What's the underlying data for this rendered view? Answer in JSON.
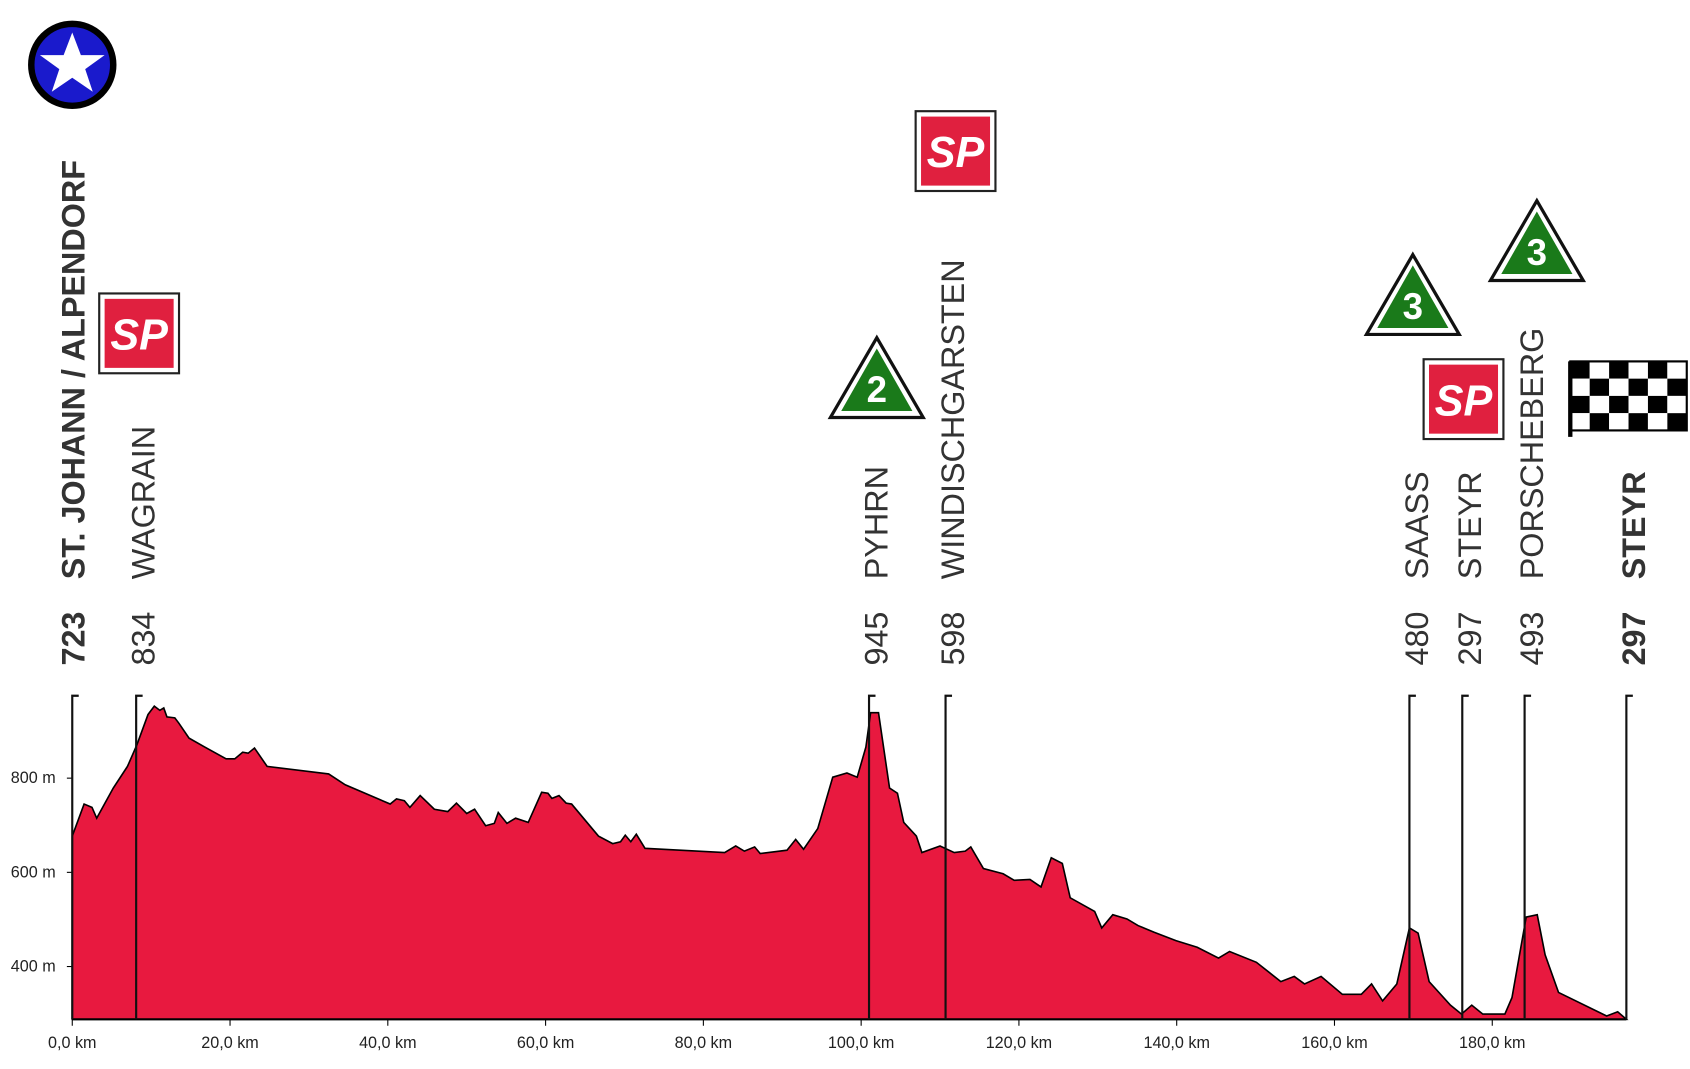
{
  "chart_data": {
    "type": "area",
    "x_unit_ticks": true,
    "x": [
      0,
      1.5,
      2.5,
      3.1,
      5.2,
      7.0,
      8.2,
      9.6,
      10.4,
      11.1,
      11.6,
      12.0,
      13.0,
      13.5,
      14.8,
      16.8,
      19.5,
      20.6,
      21.6,
      22.3,
      23.1,
      24.7,
      32.5,
      34.6,
      40.3,
      41.1,
      42.1,
      42.8,
      44.1,
      45.9,
      47.6,
      48.7,
      50.0,
      51.0,
      52.4,
      53.5,
      54.0,
      55.1,
      56.2,
      57.8,
      59.5,
      60.3,
      60.8,
      61.7,
      62.6,
      63.3,
      66.7,
      68.5,
      69.5,
      70.1,
      70.8,
      71.5,
      72.6,
      82.7,
      84.1,
      85.2,
      86.5,
      87.2,
      90.6,
      91.7,
      92.7,
      94.5,
      96.4,
      98.2,
      99.5,
      100.6,
      101.2,
      102.2,
      103.6,
      104.6,
      105.4,
      107.0,
      107.7,
      110.0,
      111.8,
      113.2,
      113.9,
      115.5,
      118.0,
      119.4,
      121.4,
      122.8,
      124.1,
      125.5,
      126.5,
      129.6,
      130.5,
      131.9,
      133.7,
      135.1,
      137.1,
      139.9,
      142.6,
      145.3,
      146.7,
      150.1,
      153.2,
      154.9,
      156.2,
      158.3,
      161.0,
      163.4,
      164.7,
      166.1,
      167.9,
      169.5,
      170.6,
      172.0,
      174.7,
      176.1,
      177.4,
      178.8,
      181.6,
      182.5,
      184.3,
      185.7,
      186.7,
      188.4,
      194.5,
      195.9,
      197.0
    ],
    "series": [
      {
        "color": "#e8193f",
        "values": [
          677,
          745,
          738,
          715,
          779,
          825,
          871,
          935,
          953,
          944,
          949,
          930,
          928,
          917,
          885,
          866,
          841,
          841,
          855,
          853,
          864,
          825,
          809,
          786,
          745,
          756,
          752,
          738,
          763,
          734,
          729,
          747,
          725,
          734,
          699,
          704,
          727,
          704,
          715,
          706,
          770,
          768,
          757,
          763,
          747,
          745,
          677,
          661,
          665,
          679,
          665,
          681,
          651,
          642,
          656,
          645,
          654,
          640,
          647,
          670,
          649,
          693,
          802,
          811,
          802,
          866,
          939,
          939,
          779,
          768,
          706,
          677,
          642,
          656,
          642,
          645,
          654,
          608,
          597,
          583,
          585,
          569,
          631,
          619,
          546,
          517,
          482,
          510,
          501,
          487,
          473,
          455,
          441,
          418,
          432,
          409,
          368,
          379,
          363,
          379,
          341,
          341,
          363,
          327,
          363,
          482,
          471,
          368,
          318,
          299,
          318,
          299,
          299,
          334,
          505,
          510,
          425,
          345,
          295,
          304,
          288
        ]
      }
    ],
    "xlim": [
      0,
      197
    ],
    "ylim": [
      288,
      975
    ],
    "xticks": [
      {
        "value": 0,
        "label": "0,0 km"
      },
      {
        "value": 20,
        "label": "20,0 km"
      },
      {
        "value": 40,
        "label": "40,0 km"
      },
      {
        "value": 60,
        "label": "60,0 km"
      },
      {
        "value": 80,
        "label": "80,0 km"
      },
      {
        "value": 100,
        "label": "100,0 km"
      },
      {
        "value": 120,
        "label": "120,0 km"
      },
      {
        "value": 140,
        "label": "140,0 km"
      },
      {
        "value": 160,
        "label": "160,0 km"
      },
      {
        "value": 180,
        "label": "180,0 km"
      }
    ],
    "yticks": [
      {
        "value": 400,
        "label": "400 m"
      },
      {
        "value": 600,
        "label": "600 m"
      },
      {
        "value": 800,
        "label": "800 m"
      }
    ],
    "waypoints": [
      {
        "km": 0,
        "altitude": 723,
        "name": "ST. JOHANN / ALPENDORF",
        "bold": true
      },
      {
        "km": 8.1,
        "altitude": 834,
        "name": "WAGRAIN",
        "sprint_label": "SP"
      },
      {
        "km": 101.0,
        "altitude": 945,
        "name": "PYHRN",
        "climb_category": "2"
      },
      {
        "km": 110.7,
        "altitude": 598,
        "name": "WINDISCHGARSTEN",
        "sprint_label": "SP"
      },
      {
        "km": 169.5,
        "altitude": 480,
        "name": "SAASS",
        "climb_category": "3"
      },
      {
        "km": 176.2,
        "altitude": 297,
        "name": "STEYR",
        "sprint_label": "SP"
      },
      {
        "km": 184.1,
        "altitude": 493,
        "name": "PORSCHEBERG",
        "climb_category": "3"
      },
      {
        "km": 197.0,
        "altitude": 297,
        "name": "STEYR",
        "bold": true
      }
    ]
  }
}
